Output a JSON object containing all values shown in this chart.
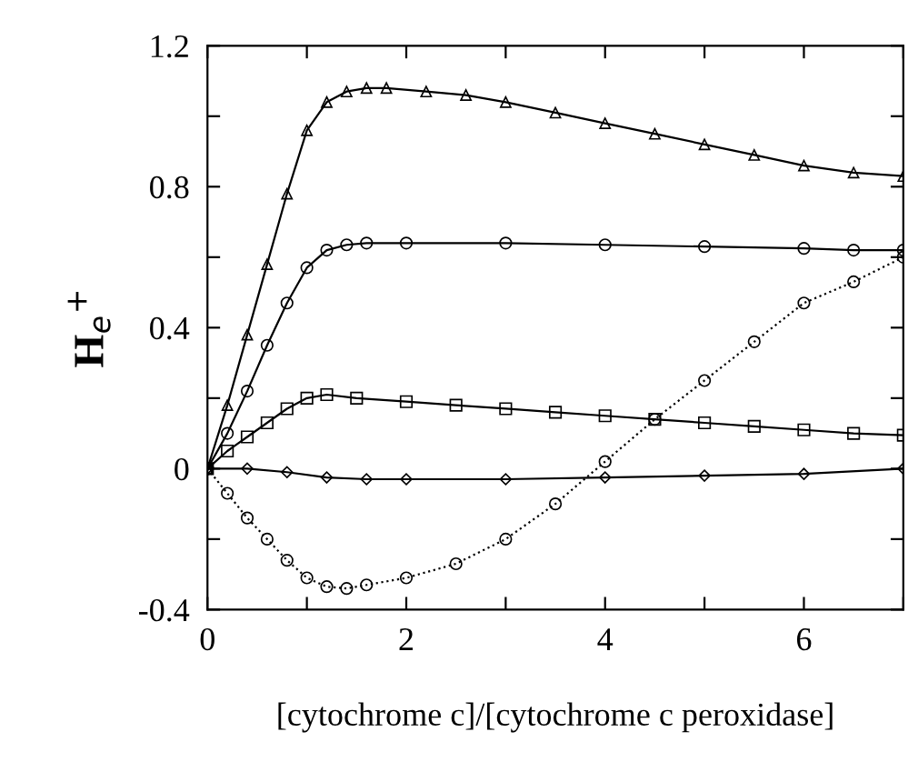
{
  "chart_data": {
    "type": "line",
    "xlabel": "[cytochrome c]/[cytochrome c peroxidase]",
    "ylabel": "H$_{e}$$^{+}$",
    "xlim": [
      0,
      7
    ],
    "ylim": [
      -0.4,
      1.2
    ],
    "xticks": [
      0,
      {
        "value": 1,
        "label": null
      },
      2,
      {
        "value": 3,
        "label": null
      },
      4,
      {
        "value": 5,
        "label": null
      },
      6,
      {
        "value": 7,
        "label": null
      }
    ],
    "yticks": [
      -0.4,
      {
        "value": -0.2,
        "label": null
      },
      0,
      {
        "value": 0.2,
        "label": null
      },
      0.4,
      {
        "value": 0.6,
        "label": null
      },
      0.8,
      {
        "value": 1.0,
        "label": null
      },
      1.2
    ],
    "grid": false,
    "legend": false,
    "series": [
      {
        "color": "#000000",
        "marker": "triangle",
        "line_style": "solid",
        "x": [
          0,
          0.2,
          0.4,
          0.6,
          0.8,
          1.0,
          1.2,
          1.4,
          1.6,
          1.8,
          2.2,
          2.6,
          3.0,
          3.5,
          4.0,
          4.5,
          5.0,
          5.5,
          6.0,
          6.5,
          7.0
        ],
        "values": [
          0,
          0.18,
          0.38,
          0.58,
          0.78,
          0.96,
          1.04,
          1.07,
          1.08,
          1.08,
          1.07,
          1.06,
          1.04,
          1.01,
          0.98,
          0.95,
          0.92,
          0.89,
          0.86,
          0.84,
          0.83
        ]
      },
      {
        "color": "#000000",
        "marker": "circle",
        "line_style": "solid",
        "x": [
          0,
          0.2,
          0.4,
          0.6,
          0.8,
          1.0,
          1.2,
          1.4,
          1.6,
          2.0,
          3.0,
          4.0,
          5.0,
          6.0,
          6.5,
          7.0
        ],
        "values": [
          0,
          0.1,
          0.22,
          0.35,
          0.47,
          0.57,
          0.62,
          0.635,
          0.64,
          0.64,
          0.64,
          0.635,
          0.63,
          0.625,
          0.62,
          0.62
        ]
      },
      {
        "color": "#000000",
        "marker": "square",
        "line_style": "solid",
        "x": [
          0,
          0.2,
          0.4,
          0.6,
          0.8,
          1.0,
          1.2,
          1.5,
          2.0,
          2.5,
          3.0,
          3.5,
          4.0,
          4.5,
          5.0,
          5.5,
          6.0,
          6.5,
          7.0
        ],
        "values": [
          0,
          0.05,
          0.09,
          0.13,
          0.17,
          0.2,
          0.21,
          0.2,
          0.19,
          0.18,
          0.17,
          0.16,
          0.15,
          0.14,
          0.13,
          0.12,
          0.11,
          0.1,
          0.095
        ]
      },
      {
        "color": "#000000",
        "marker": "diamond",
        "line_style": "solid",
        "x": [
          0,
          0.4,
          0.8,
          1.2,
          1.6,
          2.0,
          3.0,
          4.0,
          5.0,
          6.0,
          7.0
        ],
        "values": [
          0,
          0,
          -0.01,
          -0.025,
          -0.03,
          -0.03,
          -0.03,
          -0.025,
          -0.02,
          -0.015,
          0
        ]
      },
      {
        "color": "#000000",
        "marker": "circle",
        "line_style": "dotted",
        "x": [
          0,
          0.2,
          0.4,
          0.6,
          0.8,
          1.0,
          1.2,
          1.4,
          1.6,
          2.0,
          2.5,
          3.0,
          3.5,
          4.0,
          4.5,
          5.0,
          5.5,
          6.0,
          6.5,
          7.0
        ],
        "values": [
          0,
          -0.07,
          -0.14,
          -0.2,
          -0.26,
          -0.31,
          -0.335,
          -0.34,
          -0.33,
          -0.31,
          -0.27,
          -0.2,
          -0.1,
          0.02,
          0.14,
          0.25,
          0.36,
          0.47,
          0.53,
          0.6
        ]
      }
    ]
  }
}
